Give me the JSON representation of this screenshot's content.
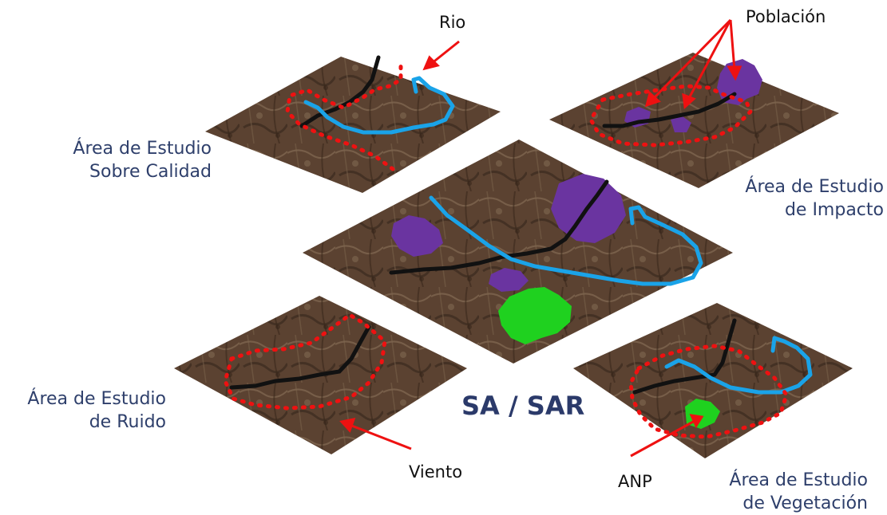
{
  "title": "SA / SAR",
  "areas": {
    "calidad": {
      "line1": "Área de Estudio",
      "line2": "Sobre Calidad"
    },
    "impacto": {
      "line1": "Área de Estudio",
      "line2": "de Impacto"
    },
    "ruido": {
      "line1": "Área de Estudio",
      "line2": "de Ruido"
    },
    "vegetacion": {
      "line1": "Área de Estudio",
      "line2": "de Vegetación"
    }
  },
  "callouts": {
    "rio": "Rio",
    "poblacion": "Población",
    "viento": "Viento",
    "anp": "ANP"
  },
  "colors": {
    "terrain": "#5a4030",
    "river": "#1aa3e8",
    "road": "#111111",
    "population": "#6a34a0",
    "anp": "#1fd11f",
    "boundary": "#ee1111",
    "arrow": "#ee1111",
    "label": "#2e3f6b"
  }
}
